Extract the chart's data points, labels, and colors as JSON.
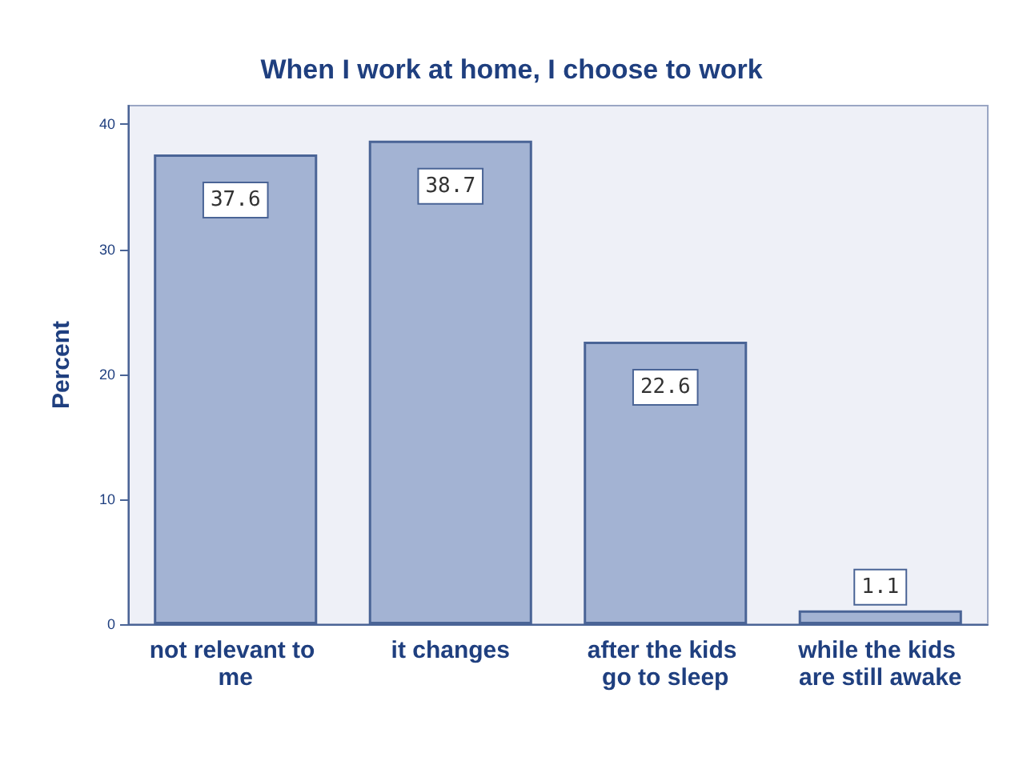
{
  "chart_data": {
    "type": "bar",
    "title": "When I work at home, I choose to work",
    "ylabel": "Percent",
    "categories": [
      "not relevant to me",
      "it changes",
      "after the kids go to sleep",
      "while the kids are still awake"
    ],
    "values": [
      37.6,
      38.7,
      22.6,
      1.1
    ],
    "color": "#a3b3d3",
    "ylim": [
      0,
      41.5
    ],
    "yticks": [
      0,
      10,
      20,
      30,
      40
    ],
    "grid": false,
    "data_labels": true
  }
}
